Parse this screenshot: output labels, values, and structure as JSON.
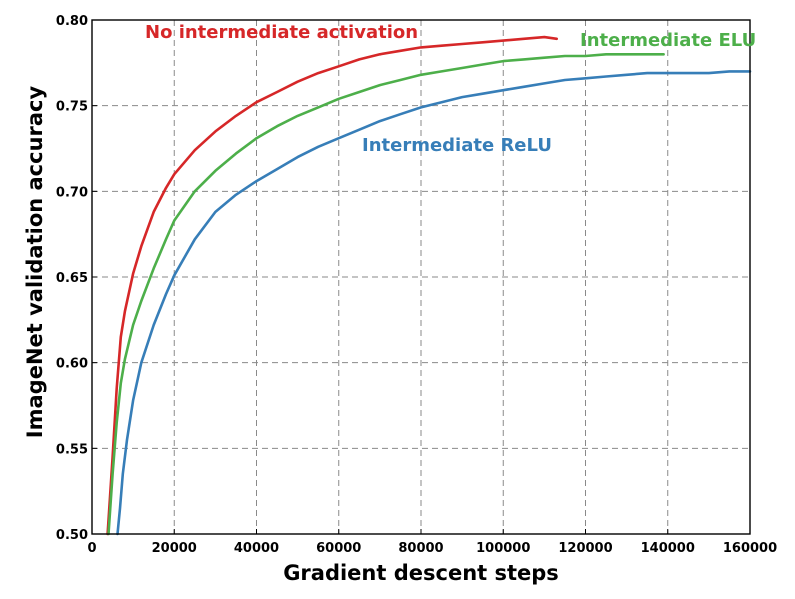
{
  "chart_data": {
    "type": "line",
    "xlabel": "Gradient descent steps",
    "ylabel": "ImageNet validation accuracy",
    "xlim": [
      0,
      160000
    ],
    "ylim": [
      0.5,
      0.8
    ],
    "xticks": [
      0,
      20000,
      40000,
      60000,
      80000,
      100000,
      120000,
      140000,
      160000
    ],
    "yticks": [
      0.5,
      0.55,
      0.6,
      0.65,
      0.7,
      0.75,
      0.8
    ],
    "ytick_labels": [
      "0.50",
      "0.55",
      "0.60",
      "0.65",
      "0.70",
      "0.75",
      "0.80"
    ],
    "grid": true,
    "series": [
      {
        "name": "No intermediate activation",
        "color": "#d62728",
        "x": [
          3800,
          5000,
          6000,
          7000,
          8000,
          10000,
          12000,
          15000,
          18000,
          20000,
          25000,
          30000,
          35000,
          40000,
          45000,
          50000,
          55000,
          60000,
          65000,
          70000,
          75000,
          80000,
          85000,
          90000,
          95000,
          100000,
          105000,
          110000,
          113000
        ],
        "y": [
          0.5,
          0.545,
          0.585,
          0.615,
          0.63,
          0.652,
          0.668,
          0.688,
          0.702,
          0.71,
          0.724,
          0.735,
          0.744,
          0.752,
          0.758,
          0.764,
          0.769,
          0.773,
          0.777,
          0.78,
          0.782,
          0.784,
          0.785,
          0.786,
          0.787,
          0.788,
          0.789,
          0.79,
          0.789
        ]
      },
      {
        "name": "Intermediate ELU",
        "color": "#4daf4a",
        "x": [
          4000,
          5000,
          6000,
          7000,
          8000,
          10000,
          12000,
          15000,
          18000,
          20000,
          25000,
          30000,
          35000,
          40000,
          45000,
          50000,
          55000,
          60000,
          65000,
          70000,
          75000,
          80000,
          85000,
          90000,
          95000,
          100000,
          105000,
          110000,
          115000,
          120000,
          125000,
          130000,
          135000,
          139000
        ],
        "y": [
          0.5,
          0.535,
          0.565,
          0.588,
          0.602,
          0.622,
          0.636,
          0.655,
          0.672,
          0.683,
          0.7,
          0.712,
          0.722,
          0.731,
          0.738,
          0.744,
          0.749,
          0.754,
          0.758,
          0.762,
          0.765,
          0.768,
          0.77,
          0.772,
          0.774,
          0.776,
          0.777,
          0.778,
          0.779,
          0.779,
          0.78,
          0.78,
          0.78,
          0.78
        ]
      },
      {
        "name": "Intermediate ReLU",
        "color": "#377eb8",
        "x": [
          6200,
          6800,
          7500,
          8500,
          10000,
          12000,
          15000,
          18000,
          20000,
          25000,
          30000,
          35000,
          40000,
          45000,
          50000,
          55000,
          60000,
          65000,
          70000,
          75000,
          80000,
          85000,
          90000,
          95000,
          100000,
          105000,
          110000,
          115000,
          120000,
          125000,
          130000,
          135000,
          140000,
          145000,
          150000,
          155000,
          160000
        ],
        "y": [
          0.5,
          0.515,
          0.535,
          0.555,
          0.578,
          0.6,
          0.622,
          0.64,
          0.651,
          0.672,
          0.688,
          0.698,
          0.706,
          0.713,
          0.72,
          0.726,
          0.731,
          0.736,
          0.741,
          0.745,
          0.749,
          0.752,
          0.755,
          0.757,
          0.759,
          0.761,
          0.763,
          0.765,
          0.766,
          0.767,
          0.768,
          0.769,
          0.769,
          0.769,
          0.769,
          0.77,
          0.77
        ]
      }
    ]
  }
}
